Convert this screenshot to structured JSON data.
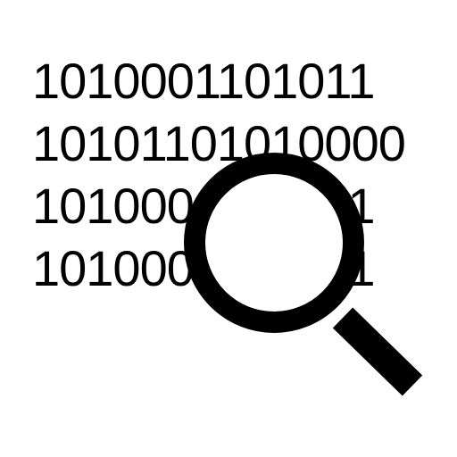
{
  "icon": {
    "name": "binary-code-search-icon",
    "foreground": "#000000",
    "background": "#ffffff"
  },
  "binary_lines": [
    "1010001101011",
    "10101101010000",
    "1010001101011",
    "1010001101011"
  ],
  "magnifier": {
    "name": "magnifying-glass-icon"
  }
}
